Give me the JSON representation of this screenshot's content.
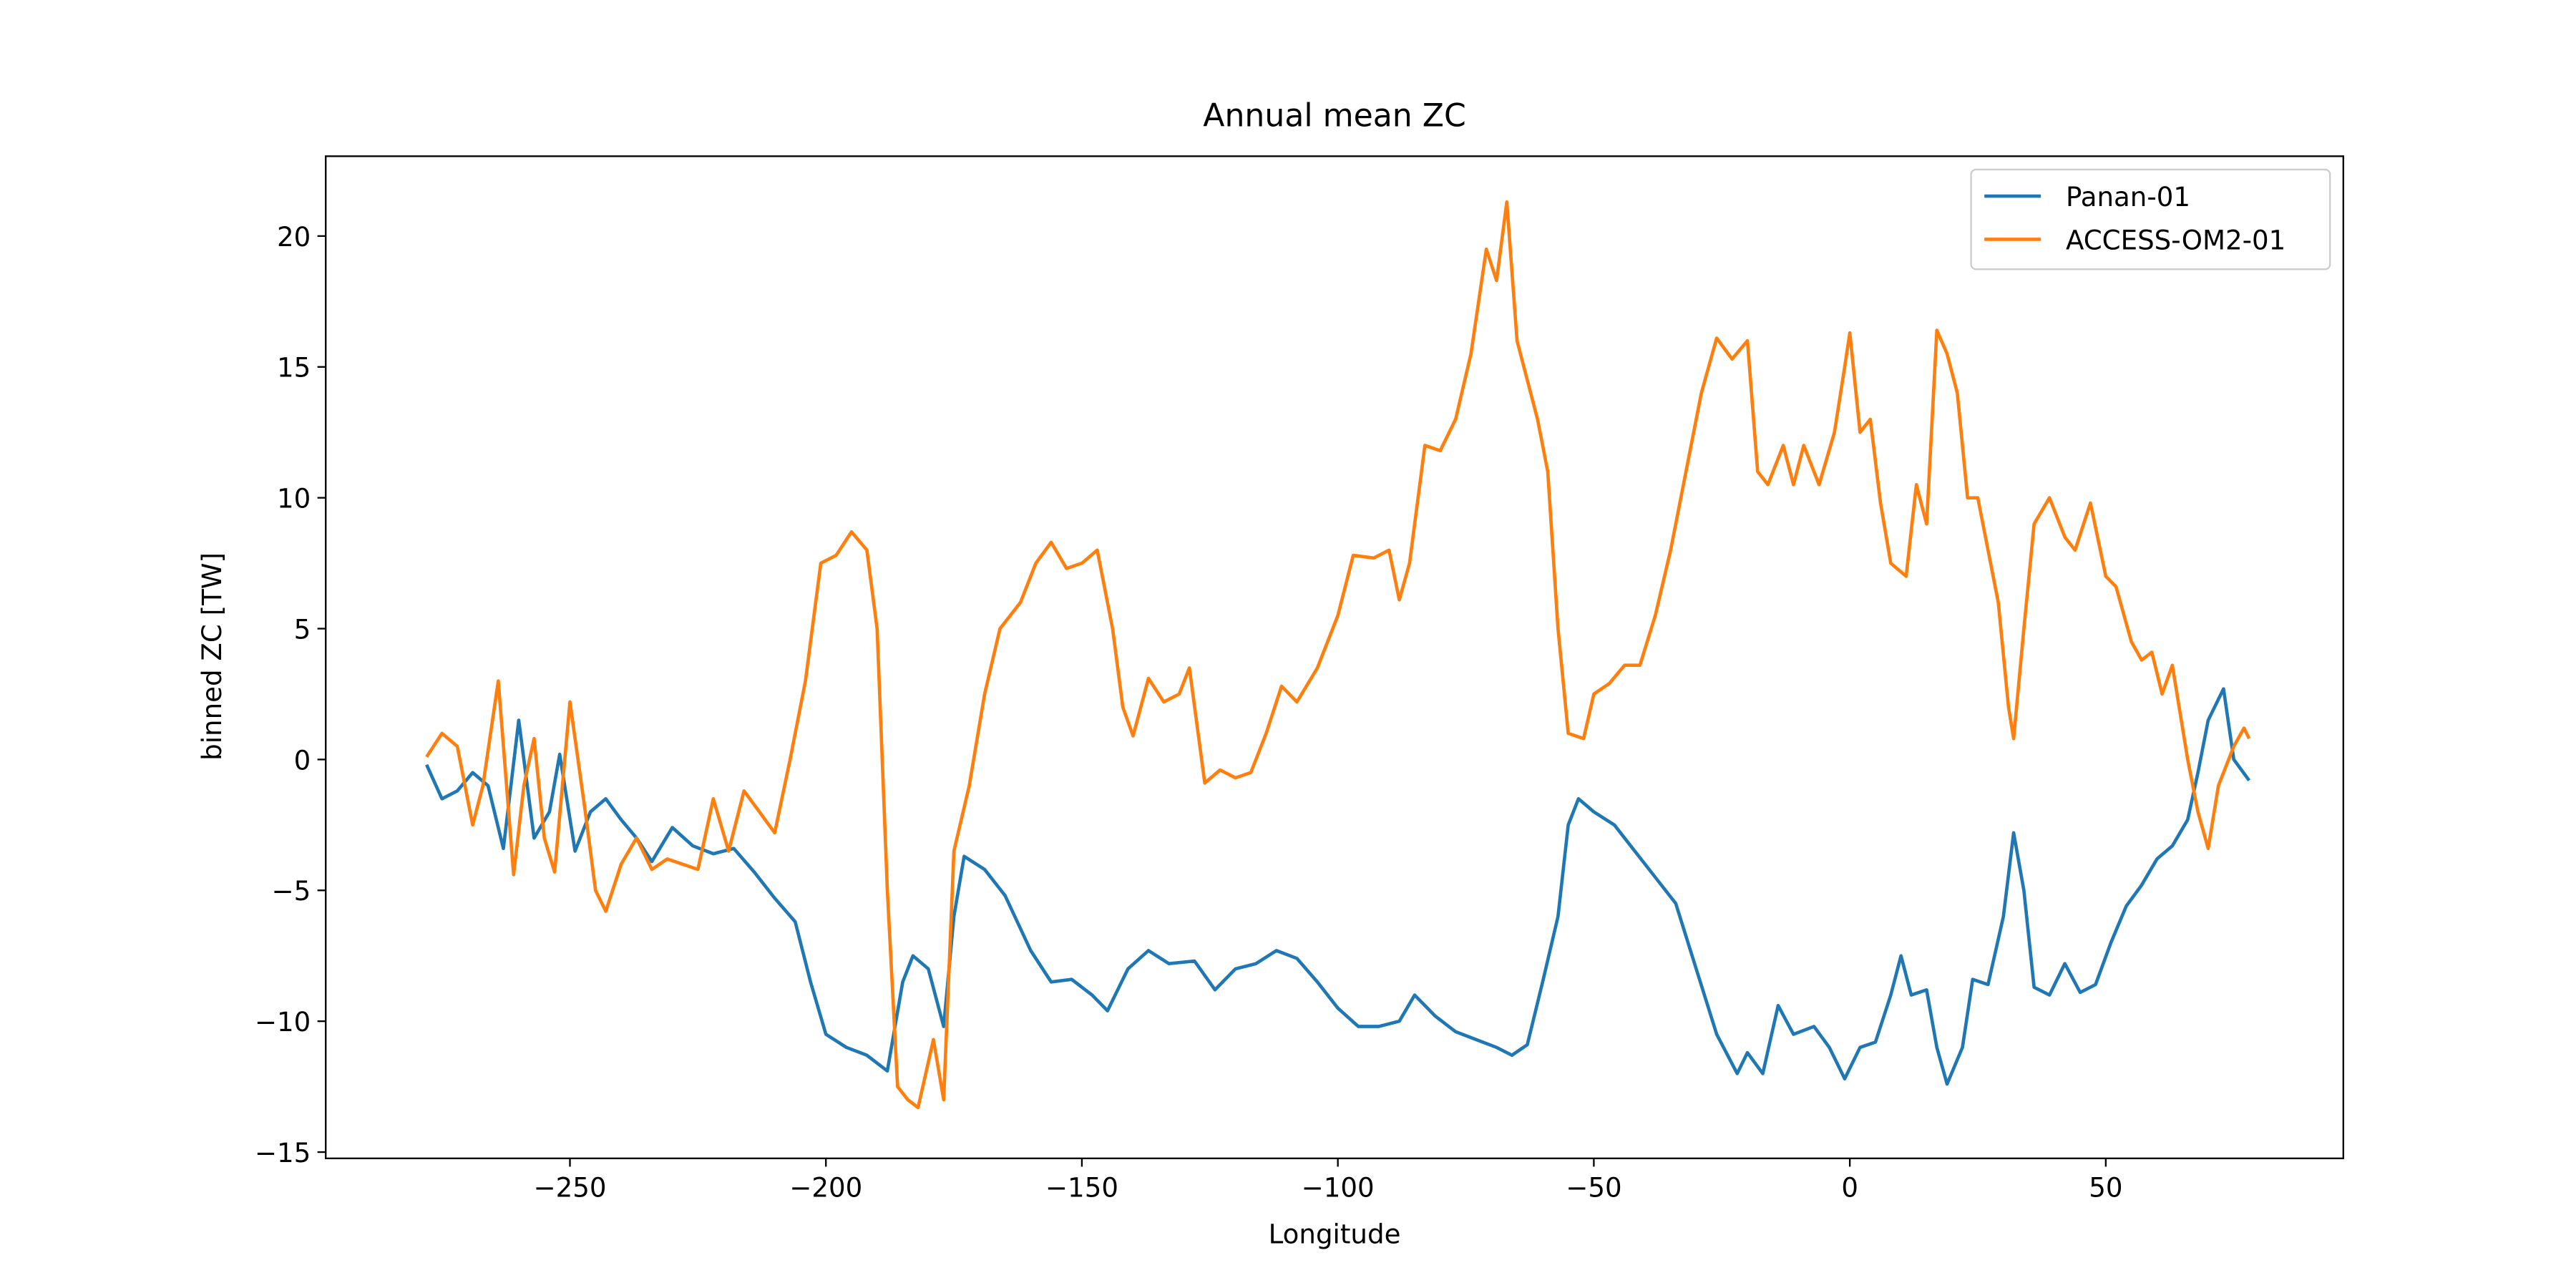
{
  "chart_data": {
    "type": "line",
    "title": "Annual mean ZC",
    "xlabel": "Longitude",
    "ylabel": "binned ZC [TW]",
    "xlim": [
      -297.7,
      96.4
    ],
    "ylim": [
      -15.24,
      23.05
    ],
    "xticks": [
      {
        "value": -250,
        "label": "−250"
      },
      {
        "value": -200,
        "label": "−200"
      },
      {
        "value": -150,
        "label": "−150"
      },
      {
        "value": -100,
        "label": "−100"
      },
      {
        "value": -50,
        "label": "−50"
      },
      0,
      50
    ],
    "yticks": [
      {
        "value": -15,
        "label": "−15"
      },
      {
        "value": -10,
        "label": "−10"
      },
      {
        "value": -5,
        "label": "−5"
      },
      0,
      5,
      10,
      15,
      20
    ],
    "legend": "upper right",
    "series": [
      {
        "name": "Panan-01",
        "color": "#1f77b4",
        "x": [
          -278,
          -275,
          -272,
          -269,
          -266,
          -263,
          -260,
          -257,
          -254,
          -252,
          -249,
          -246,
          -243,
          -240,
          -237,
          -234,
          -230,
          -226,
          -222,
          -218,
          -214,
          -210,
          -206,
          -203,
          -200,
          -196,
          -192,
          -188,
          -185,
          -183,
          -180,
          -177,
          -175,
          -173,
          -169,
          -165,
          -160,
          -156,
          -152,
          -148,
          -145,
          -141,
          -137,
          -133,
          -128,
          -124,
          -120,
          -116,
          -112,
          -108,
          -104,
          -100,
          -96,
          -92,
          -88,
          -85,
          -81,
          -77,
          -73,
          -69,
          -66,
          -63,
          -60,
          -57,
          -55,
          -53,
          -50,
          -46,
          -42,
          -38,
          -34,
          -30,
          -26,
          -22,
          -20,
          -17,
          -14,
          -11,
          -7,
          -4,
          -1,
          2,
          5,
          8,
          10,
          12,
          15,
          17,
          19,
          22,
          24,
          27,
          30,
          32,
          34,
          36,
          39,
          42,
          45,
          48,
          51,
          54,
          57,
          60,
          63,
          66,
          68,
          70,
          73,
          75,
          78
        ],
        "values": [
          -0.2,
          -1.5,
          -1.2,
          -0.5,
          -1.0,
          -3.4,
          1.5,
          -3.0,
          -2.0,
          0.2,
          -3.5,
          -2.0,
          -1.5,
          -2.3,
          -3.0,
          -3.9,
          -2.6,
          -3.3,
          -3.6,
          -3.4,
          -4.3,
          -5.3,
          -6.2,
          -8.5,
          -10.5,
          -11.0,
          -11.3,
          -11.9,
          -8.5,
          -7.5,
          -8.0,
          -10.2,
          -6.0,
          -3.7,
          -4.2,
          -5.2,
          -7.3,
          -8.5,
          -8.4,
          -9.0,
          -9.6,
          -8.0,
          -7.3,
          -7.8,
          -7.7,
          -8.8,
          -8.0,
          -7.8,
          -7.3,
          -7.6,
          -8.5,
          -9.5,
          -10.2,
          -10.2,
          -10.0,
          -9.0,
          -9.8,
          -10.4,
          -10.7,
          -11.0,
          -11.3,
          -10.9,
          -8.5,
          -6.0,
          -2.5,
          -1.5,
          -2.0,
          -2.5,
          -3.5,
          -4.5,
          -5.5,
          -8.0,
          -10.5,
          -12.0,
          -11.2,
          -12.0,
          -9.4,
          -10.5,
          -10.2,
          -11.0,
          -12.2,
          -11.0,
          -10.8,
          -9.0,
          -7.5,
          -9.0,
          -8.8,
          -11.0,
          -12.4,
          -11.0,
          -8.4,
          -8.6,
          -6.0,
          -2.8,
          -5.0,
          -8.7,
          -9.0,
          -7.8,
          -8.9,
          -8.6,
          -7.0,
          -5.6,
          -4.8,
          -3.8,
          -3.3,
          -2.3,
          -0.5,
          1.5,
          2.7,
          0.0,
          -0.8
        ]
      },
      {
        "name": "ACCESS-OM2-01",
        "color": "#ff7f0e",
        "x": [
          -278,
          -275,
          -272,
          -269,
          -267,
          -264,
          -261,
          -259,
          -257,
          -255,
          -253,
          -250,
          -247,
          -245,
          -243,
          -240,
          -237,
          -234,
          -231,
          -228,
          -225,
          -222,
          -219,
          -216,
          -213,
          -210,
          -207,
          -204,
          -201,
          -198,
          -195,
          -192,
          -190,
          -188,
          -186,
          -184,
          -182,
          -179,
          -177,
          -175,
          -172,
          -169,
          -166,
          -162,
          -159,
          -156,
          -153,
          -150,
          -147,
          -144,
          -142,
          -140,
          -137,
          -134,
          -131,
          -129,
          -126,
          -123,
          -120,
          -117,
          -114,
          -111,
          -108,
          -104,
          -100,
          -97,
          -93,
          -90,
          -88,
          -86,
          -83,
          -80,
          -77,
          -74,
          -71,
          -69,
          -67,
          -65,
          -63,
          -61,
          -59,
          -57,
          -55,
          -52,
          -50,
          -47,
          -44,
          -41,
          -38,
          -35,
          -32,
          -29,
          -26,
          -23,
          -20,
          -18,
          -16,
          -13,
          -11,
          -9,
          -6,
          -3,
          -1,
          0,
          2,
          4,
          6,
          8,
          11,
          13,
          15,
          17,
          19,
          21,
          23,
          25,
          27,
          29,
          31,
          32,
          34,
          36,
          39,
          42,
          44,
          47,
          50,
          52,
          55,
          57,
          59,
          61,
          63,
          66,
          68,
          70,
          72,
          75,
          77,
          78
        ],
        "values": [
          0.1,
          1.0,
          0.5,
          -2.5,
          -1.0,
          3.0,
          -4.4,
          -1.0,
          0.8,
          -3.0,
          -4.3,
          2.2,
          -2.0,
          -5.0,
          -5.8,
          -4.0,
          -3.0,
          -4.2,
          -3.8,
          -4.0,
          -4.2,
          -1.5,
          -3.5,
          -1.2,
          -2.0,
          -2.8,
          0.0,
          3.0,
          7.5,
          7.8,
          8.7,
          8.0,
          5.0,
          -5.0,
          -12.5,
          -13.0,
          -13.3,
          -10.7,
          -13.0,
          -3.5,
          -1.0,
          2.5,
          5.0,
          6.0,
          7.5,
          8.3,
          7.3,
          7.5,
          8.0,
          5.0,
          2.0,
          0.9,
          3.1,
          2.2,
          2.5,
          3.5,
          -0.9,
          -0.4,
          -0.7,
          -0.5,
          1.0,
          2.8,
          2.2,
          3.5,
          5.5,
          7.8,
          7.7,
          8.0,
          6.1,
          7.5,
          12.0,
          11.8,
          13.0,
          15.5,
          19.5,
          18.3,
          21.3,
          16.0,
          14.5,
          13.0,
          11.0,
          5.0,
          1.0,
          0.8,
          2.5,
          2.9,
          3.6,
          3.6,
          5.5,
          8.0,
          11.0,
          14.0,
          16.1,
          15.3,
          16.0,
          11.0,
          10.5,
          12.0,
          10.5,
          12.0,
          10.5,
          12.5,
          15.0,
          16.3,
          12.5,
          13.0,
          9.8,
          7.5,
          7.0,
          10.5,
          9.0,
          16.4,
          15.5,
          14.0,
          10.0,
          10.0,
          8.0,
          6.0,
          2.0,
          0.8,
          5.0,
          9.0,
          10.0,
          8.5,
          8.0,
          9.8,
          7.0,
          6.6,
          4.5,
          3.8,
          4.1,
          2.5,
          3.6,
          0.0,
          -2.0,
          -3.4,
          -1.0,
          0.5,
          1.2,
          0.8
        ]
      }
    ]
  }
}
